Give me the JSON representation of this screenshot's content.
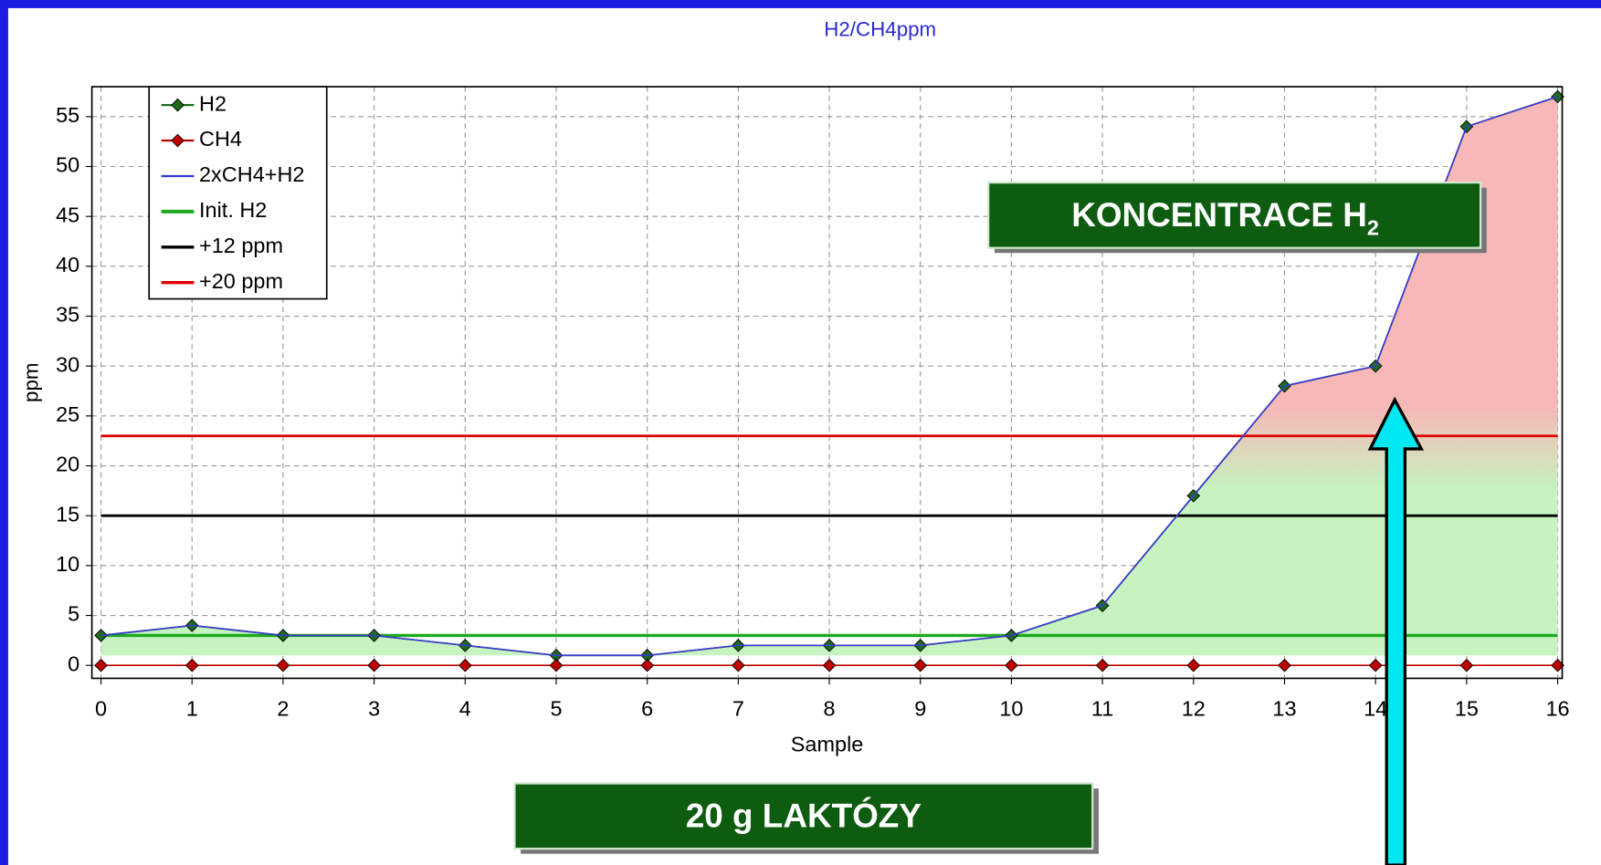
{
  "chart_data": {
    "type": "line",
    "title": "H2/CH4ppm",
    "x_label": "Sample",
    "y_label": "ppm",
    "x": [
      0,
      1,
      2,
      3,
      4,
      5,
      6,
      7,
      8,
      9,
      10,
      11,
      12,
      13,
      14,
      15,
      16
    ],
    "series": [
      {
        "name": "H2",
        "color": "#1e6b1e",
        "values": [
          3,
          4,
          3,
          3,
          2,
          1,
          1,
          2,
          2,
          2,
          3,
          6,
          17,
          28,
          30,
          54,
          57
        ]
      },
      {
        "name": "CH4",
        "color": "#c00000",
        "values": [
          0,
          0,
          0,
          0,
          0,
          0,
          0,
          0,
          0,
          0,
          0,
          0,
          0,
          0,
          0,
          0,
          0
        ]
      },
      {
        "name": "2xCH4+H2",
        "color": "#3a3ad0",
        "values": [
          3,
          4,
          3,
          3,
          2,
          1,
          1,
          2,
          2,
          2,
          3,
          6,
          17,
          28,
          30,
          54,
          57
        ]
      },
      {
        "name": "Init. H2",
        "color": "#1fa81f",
        "values": [
          3,
          3,
          3,
          3,
          3,
          3,
          3,
          3,
          3,
          3,
          3,
          3,
          3,
          3,
          3,
          3,
          3
        ]
      },
      {
        "name": "+12 ppm",
        "color": "#000000",
        "values": [
          15,
          15,
          15,
          15,
          15,
          15,
          15,
          15,
          15,
          15,
          15,
          15,
          15,
          15,
          15,
          15,
          15
        ]
      },
      {
        "name": "+20 ppm",
        "color": "#e00000",
        "values": [
          23,
          23,
          23,
          23,
          23,
          23,
          23,
          23,
          23,
          23,
          23,
          23,
          23,
          23,
          23,
          23,
          23
        ]
      }
    ],
    "xlim": [
      -0.1,
      16.05
    ],
    "ylim": [
      -1.3,
      58
    ],
    "xticks": [
      0,
      1,
      2,
      3,
      4,
      5,
      6,
      7,
      8,
      9,
      10,
      11,
      12,
      13,
      14,
      15,
      16
    ],
    "yticks": [
      0,
      5,
      10,
      15,
      20,
      25,
      30,
      35,
      40,
      45,
      50,
      55
    ],
    "grid": true,
    "legend": "upper left",
    "annotations": {
      "concentration": {
        "text": "KONCENTRACE H",
        "subscript": "2"
      },
      "dose": "20 g LAKTÓZY"
    }
  }
}
